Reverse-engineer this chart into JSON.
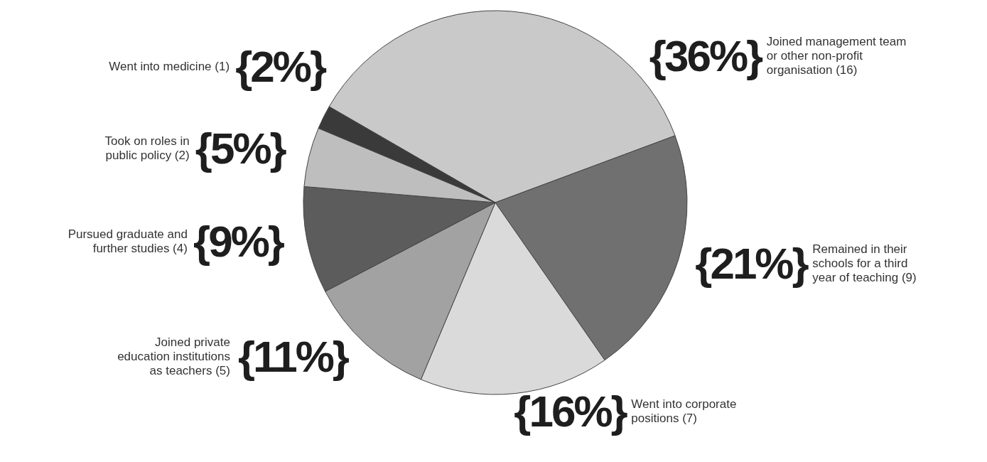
{
  "chart_data": {
    "type": "pie",
    "categories": [
      "Joined management team or other non-profit organisation (16)",
      "Remained in their schools for a third year of teaching (9)",
      "Went into corporate positions (7)",
      "Joined private education institutions as teachers (5)",
      "Pursued graduate and further studies (4)",
      "Took on roles in public policy (2)",
      "Went into medicine (1)"
    ],
    "values": [
      36,
      21,
      16,
      11,
      9,
      5,
      2
    ],
    "colors": [
      "#c9c9c9",
      "#707070",
      "#dadada",
      "#a2a2a2",
      "#5c5c5c",
      "#bebebe",
      "#3a3a3a"
    ],
    "value_labels": [
      "{36%}",
      "{21%}",
      "{16%}",
      "{11%}",
      "{9%}",
      "{5%}",
      "{2%}"
    ],
    "legend": false
  }
}
